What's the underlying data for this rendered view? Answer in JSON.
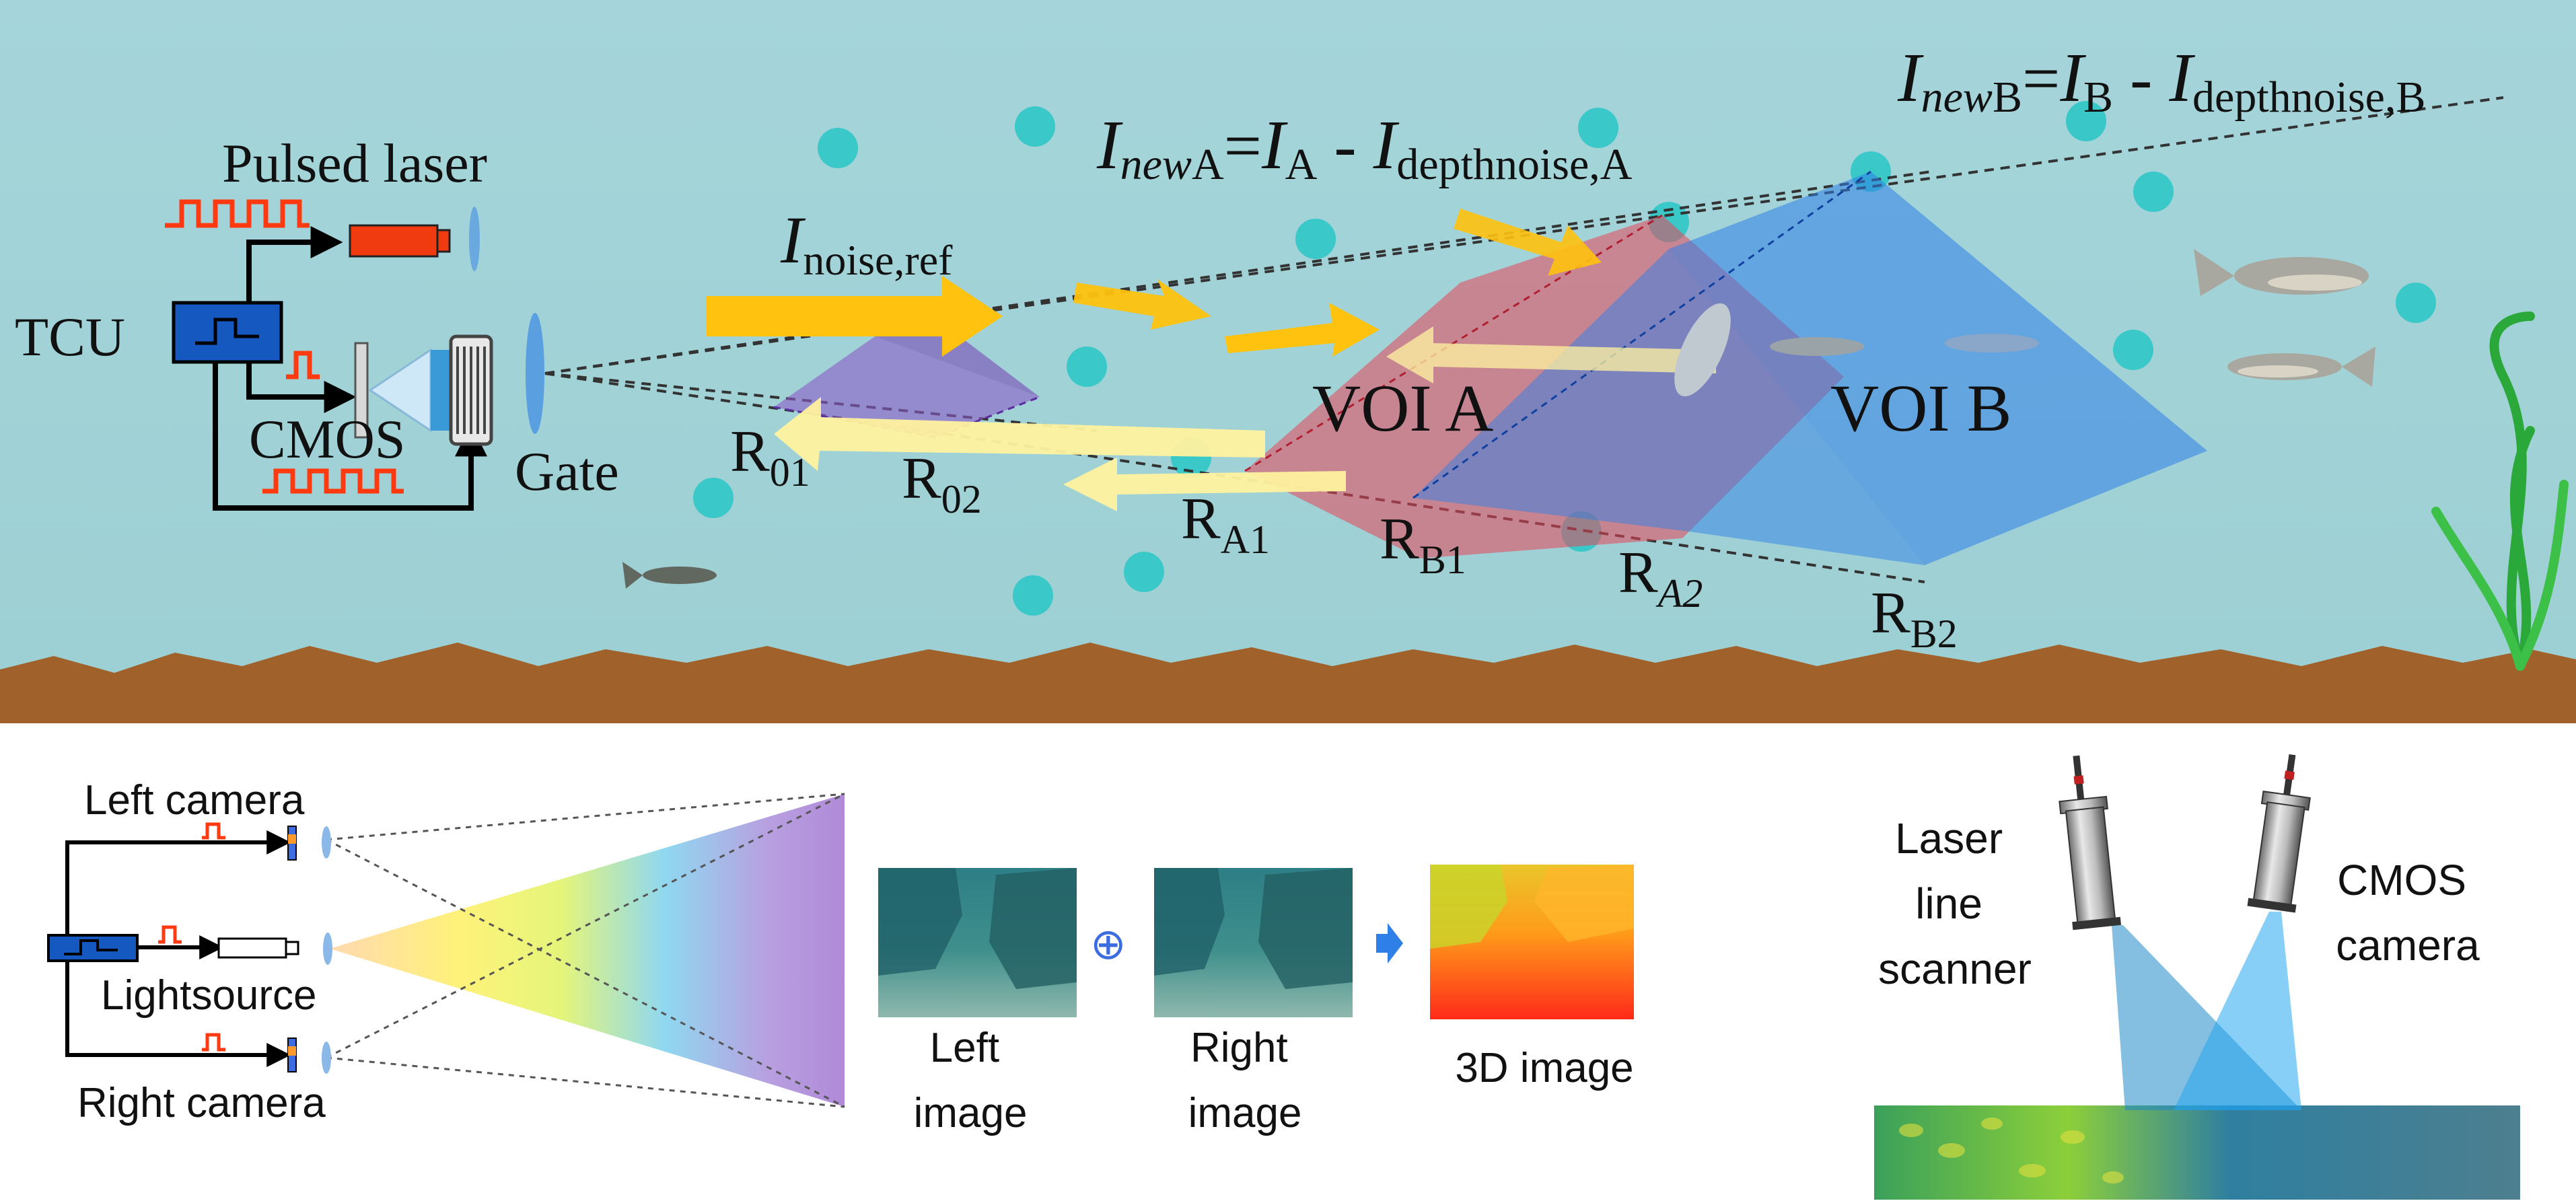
{
  "top_panel": {
    "pulsed_laser_label": "Pulsed laser",
    "tcu_label": "TCU",
    "cmos_label": "CMOS",
    "gate_label": "Gate",
    "noise_ref": {
      "base": "I",
      "sub": "noise,ref"
    },
    "eq_a": {
      "i1": "I",
      "sub1a": "new",
      "sub1b": "A",
      "eq": "=",
      "i2": "I",
      "sub2": "A",
      "minus": " - ",
      "i3": "I",
      "sub3": "depthnoise,A"
    },
    "eq_b": {
      "i1": "I",
      "sub1a": "new",
      "sub1b": "B",
      "eq": "=",
      "i2": "I",
      "sub2": "B",
      "minus": " - ",
      "i3": "I",
      "sub3": "depthnoise,B"
    },
    "voi_a": "VOI A",
    "voi_b": "VOI B",
    "ranges": {
      "r01": {
        "base": "R",
        "sub": "01"
      },
      "r02": {
        "base": "R",
        "sub": "02"
      },
      "ra1": {
        "base": "R",
        "sub": "A1"
      },
      "rb1": {
        "base": "R",
        "sub": "B1"
      },
      "ra2": {
        "base": "R",
        "sub": "A2"
      },
      "rb2": {
        "base": "R",
        "sub": "B2"
      }
    }
  },
  "stereo_panel": {
    "left_camera": "Left camera",
    "lightsource": "Lightsource",
    "right_camera": "Right camera",
    "left_image": [
      "Left",
      "image"
    ],
    "right_image": [
      "Right",
      "image"
    ],
    "combine_symbol": "⊕",
    "result_label": "3D image"
  },
  "laser_panel": {
    "laser_label": [
      "Laser",
      "line",
      "scanner"
    ],
    "camera_label": [
      "CMOS",
      "camera"
    ]
  },
  "colors": {
    "water": "#a9d7da",
    "seabed": "#a0622a",
    "voi_a": "#e8455a",
    "voi_b": "#2f7fe8",
    "noise_volume": "#8c5cc8",
    "bubble": "#2fc6c6",
    "tcu_box": "#1558c0",
    "pulse": "#ff3a10",
    "arrow_forward": "#ffc20e",
    "arrow_back": "#fff3a0"
  }
}
